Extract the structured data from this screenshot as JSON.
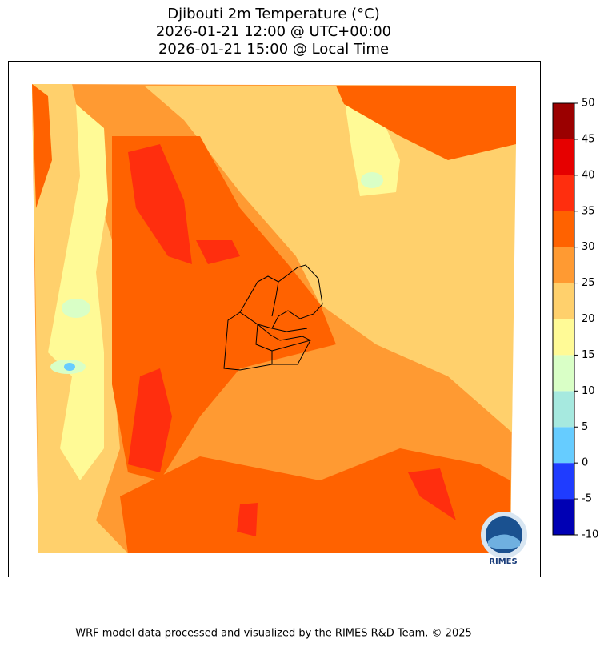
{
  "title_lines": [
    "Djibouti 2m Temperature (°C)",
    "2026-01-21 12:00 @ UTC+00:00",
    "2026-01-21 15:00 @ Local Time"
  ],
  "colorbar": {
    "ticks": [
      -10,
      -5,
      0,
      5,
      10,
      15,
      20,
      25,
      30,
      35,
      40,
      45,
      50
    ],
    "colors": [
      "#0000b4",
      "#1f3cff",
      "#66ccff",
      "#a6e9df",
      "#d9ffc6",
      "#fffa96",
      "#ffd06c",
      "#ff9a32",
      "#ff6200",
      "#ff2e0e",
      "#e60000",
      "#9b0000"
    ]
  },
  "logo_text": "RIMES",
  "footer": "WRF model data processed and visualized by the RIMES R&D Team. © 2025"
}
